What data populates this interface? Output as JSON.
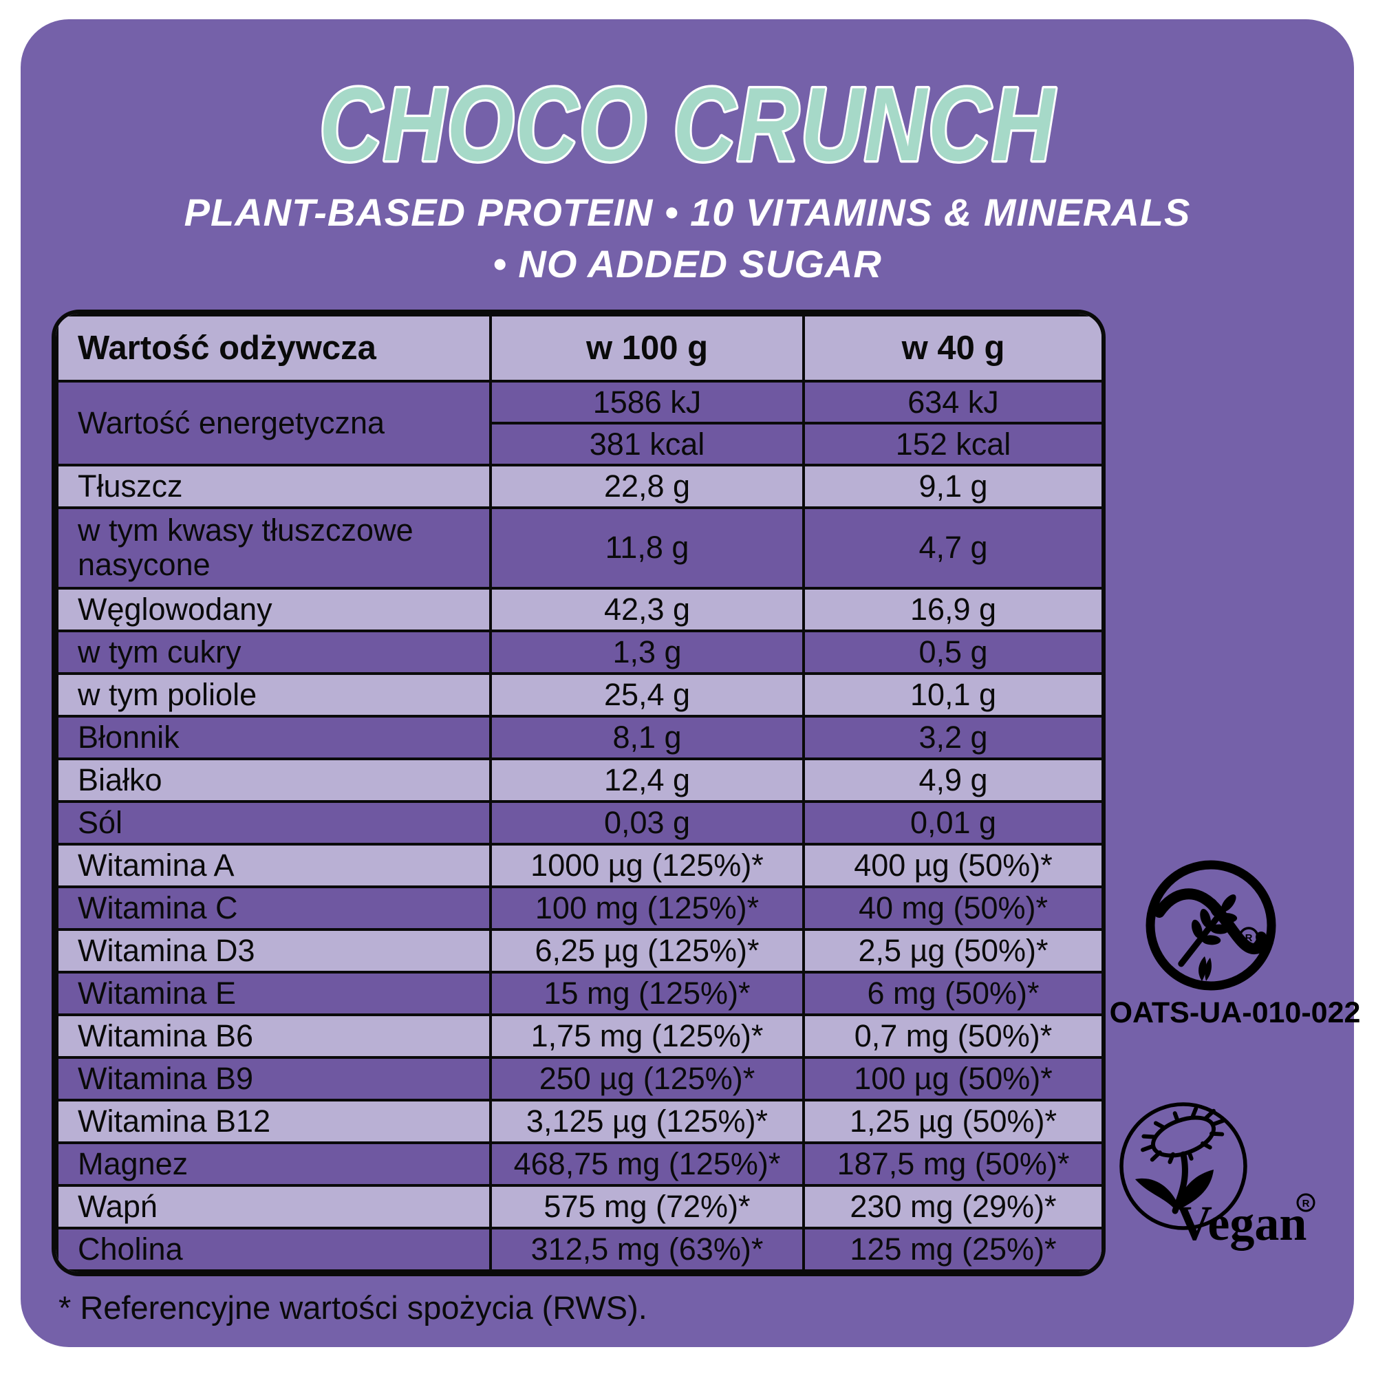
{
  "page": {
    "title": "CHOCO CRUNCH",
    "subtitle_line1": "PLANT-BASED PROTEIN • 10 VITAMINS & MINERALS",
    "subtitle_line2": "• NO ADDED SUGAR",
    "footnote": "* Referencyjne wartości spożycia (RWS)."
  },
  "colors": {
    "card_bg": "#7561a9",
    "row_light": "#b9b0d4",
    "row_dark": "#6f58a1",
    "title_mint": "#a6d9c8",
    "text_black": "#0a0a0a"
  },
  "table": {
    "columns": [
      "Wartość odżywcza",
      "w 100 g",
      "w 40 g"
    ],
    "energy_row": {
      "label": "Wartość energetyczna",
      "sub_rows": [
        [
          "1586 kJ",
          "634 kJ"
        ],
        [
          "381 kcal",
          "152 kcal"
        ]
      ]
    },
    "rows": [
      {
        "label": "Tłuszcz",
        "v100": "22,8 g",
        "v40": "9,1 g"
      },
      {
        "label": "w tym kwasy tłuszczowe nasycone",
        "v100": "11,8 g",
        "v40": "4,7 g",
        "tall": true
      },
      {
        "label": "Węglowodany",
        "v100": "42,3 g",
        "v40": "16,9 g"
      },
      {
        "label": "w tym cukry",
        "v100": "1,3 g",
        "v40": "0,5 g"
      },
      {
        "label": "w tym poliole",
        "v100": "25,4 g",
        "v40": "10,1 g"
      },
      {
        "label": "Błonnik",
        "v100": "8,1 g",
        "v40": "3,2 g"
      },
      {
        "label": "Białko",
        "v100": "12,4 g",
        "v40": "4,9 g"
      },
      {
        "label": "Sól",
        "v100": "0,03 g",
        "v40": "0,01 g"
      },
      {
        "label": "Witamina A",
        "v100": "1000 µg (125%)*",
        "v40": "400 µg (50%)*"
      },
      {
        "label": "Witamina C",
        "v100": "100 mg (125%)*",
        "v40": "40 mg (50%)*"
      },
      {
        "label": "Witamina D3",
        "v100": "6,25 µg (125%)*",
        "v40": "2,5 µg (50%)*"
      },
      {
        "label": "Witamina E",
        "v100": "15 mg (125%)*",
        "v40": "6 mg (50%)*"
      },
      {
        "label": "Witamina B6",
        "v100": "1,75 mg (125%)*",
        "v40": "0,7 mg (50%)*"
      },
      {
        "label": "Witamina B9",
        "v100": "250 µg (125%)*",
        "v40": "100 µg (50%)*"
      },
      {
        "label": "Witamina B12",
        "v100": "3,125 µg (125%)*",
        "v40": "1,25 µg (50%)*"
      },
      {
        "label": "Magnez",
        "v100": "468,75 mg (125%)*",
        "v40": "187,5 mg (50%)*"
      },
      {
        "label": "Wapń",
        "v100": "575 mg (72%)*",
        "v40": "230 mg (29%)*"
      },
      {
        "label": "Cholina",
        "v100": "312,5 mg (63%)*",
        "v40": "125 mg (25%)*"
      }
    ]
  },
  "badges": {
    "gluten_free_code": "OATS-UA-010-022",
    "vegan_label": "Vegan",
    "registered_r": "R"
  }
}
